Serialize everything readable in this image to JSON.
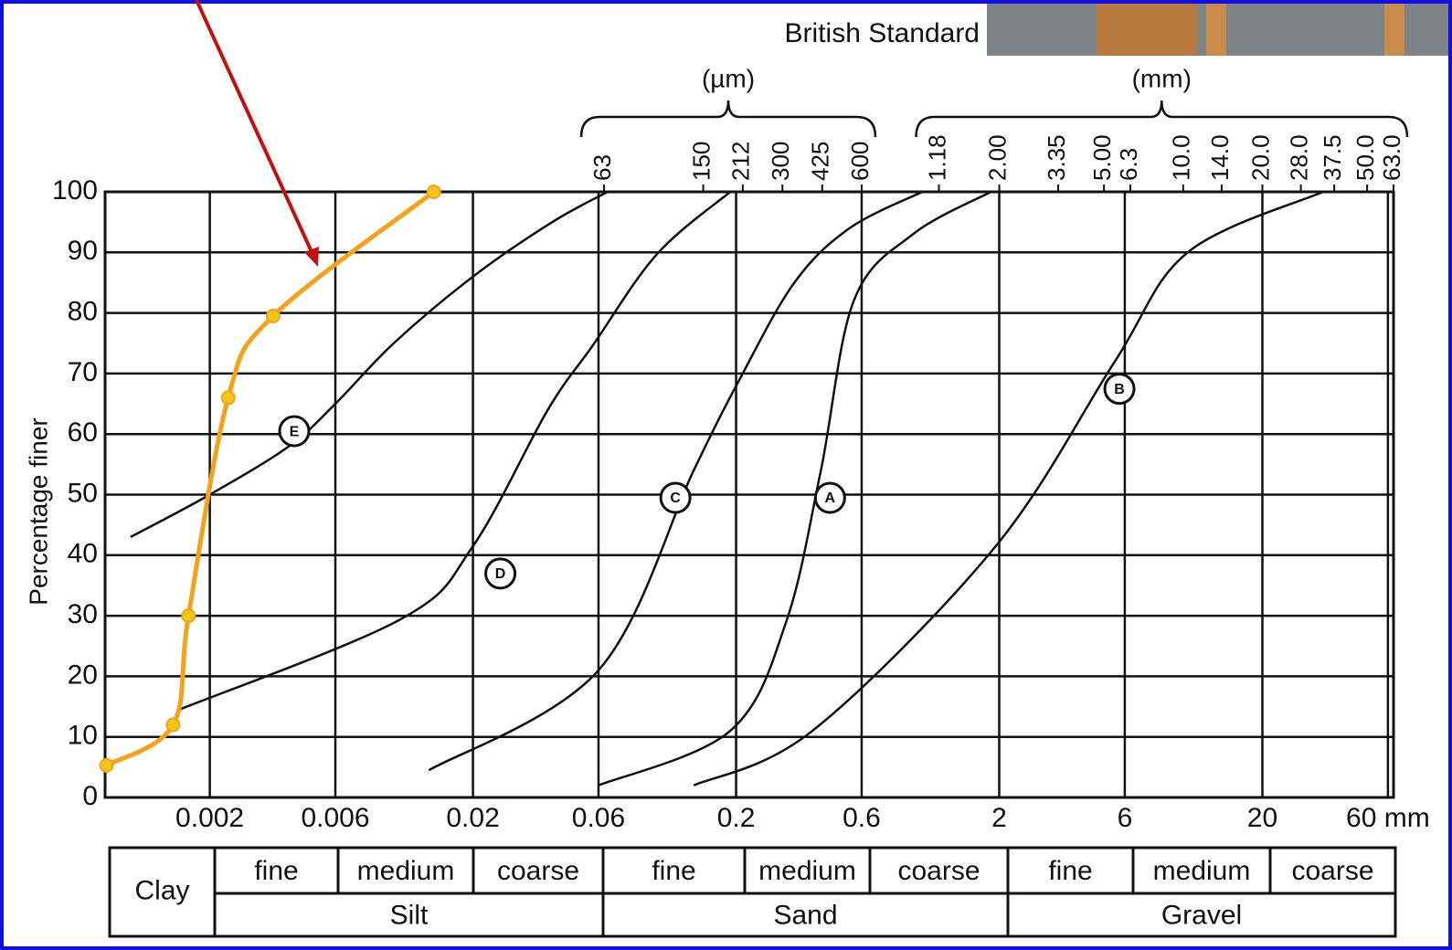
{
  "chart_data": {
    "type": "line",
    "title": "British Standard",
    "y_label": "Percentage finer",
    "log_x": true,
    "grid": true,
    "xlim": [
      0.0008,
      63
    ],
    "ylim": [
      0,
      100
    ],
    "yticks": [
      0,
      10,
      20,
      30,
      40,
      50,
      60,
      70,
      80,
      90,
      100
    ],
    "xticks": [
      0.002,
      0.006,
      0.02,
      0.06,
      0.2,
      0.6,
      2,
      6,
      20,
      {
        "value": 60,
        "label": "60 mm"
      }
    ],
    "top_groups": [
      {
        "label": "(µm)",
        "ticks": [
          {
            "value": 0.063,
            "label": "63"
          },
          {
            "value": 0.15,
            "label": "150"
          },
          {
            "value": 0.212,
            "label": "212"
          },
          {
            "value": 0.3,
            "label": "300"
          },
          {
            "value": 0.425,
            "label": "425"
          },
          {
            "value": 0.6,
            "label": "600"
          }
        ]
      },
      {
        "label": "(mm)",
        "ticks": [
          1.18,
          {
            "value": 2,
            "label": "2.00"
          },
          3.35,
          {
            "value": 5,
            "label": "5.00"
          },
          6.3,
          {
            "value": 10,
            "label": "10.0"
          },
          {
            "value": 14,
            "label": "14.0"
          },
          {
            "value": 20,
            "label": "20.0"
          },
          {
            "value": 28,
            "label": "28.0"
          },
          37.5,
          {
            "value": 50,
            "label": "50.0"
          },
          {
            "value": 63,
            "label": "63.0"
          }
        ]
      }
    ],
    "series": [
      {
        "name": "A",
        "color": "#111111",
        "x": [
          0.06,
          0.19,
          0.31,
          0.42,
          0.56,
          0.94,
          1.86
        ],
        "values": [
          2,
          11,
          29,
          54,
          82,
          93,
          100
        ]
      },
      {
        "name": "B",
        "color": "#111111",
        "x": [
          0.138,
          0.39,
          1.94,
          5.5,
          10.4,
          34
        ],
        "values": [
          2,
          11,
          41.5,
          72,
          90,
          100
        ]
      },
      {
        "name": "C",
        "color": "#111111",
        "x": [
          0.0136,
          0.06,
          0.138,
          0.206,
          0.333,
          0.54,
          1.02
        ],
        "values": [
          4.5,
          21,
          54,
          69,
          85,
          94,
          100
        ]
      },
      {
        "name": "D",
        "color": "#111111",
        "x": [
          0.00151,
          0.0107,
          0.02,
          0.0385,
          0.057,
          0.1,
          0.19
        ],
        "values": [
          14.4,
          29.5,
          41.5,
          64,
          74.6,
          89.7,
          100
        ]
      },
      {
        "name": "E",
        "color": "#111111",
        "x": [
          0.001,
          0.002,
          0.004,
          0.006,
          0.01,
          0.02,
          0.04,
          0.065
        ],
        "values": [
          43,
          50,
          58,
          65,
          75,
          86,
          95,
          100
        ]
      },
      {
        "color": "#f5a21b",
        "markers": true,
        "x": [
          0.00081,
          0.00145,
          0.00166,
          0.00235,
          0.00348,
          0.0142
        ],
        "values": [
          5.3,
          12,
          30,
          66,
          79.5,
          100
        ]
      }
    ]
  },
  "size_table": {
    "clay": "Clay",
    "groups": [
      {
        "name": "Silt",
        "subdivisions": [
          "fine",
          "medium",
          "coarse"
        ]
      },
      {
        "name": "Sand",
        "subdivisions": [
          "fine",
          "medium",
          "coarse"
        ]
      },
      {
        "name": "Gravel",
        "subdivisions": [
          "fine",
          "medium",
          "coarse"
        ]
      }
    ]
  }
}
